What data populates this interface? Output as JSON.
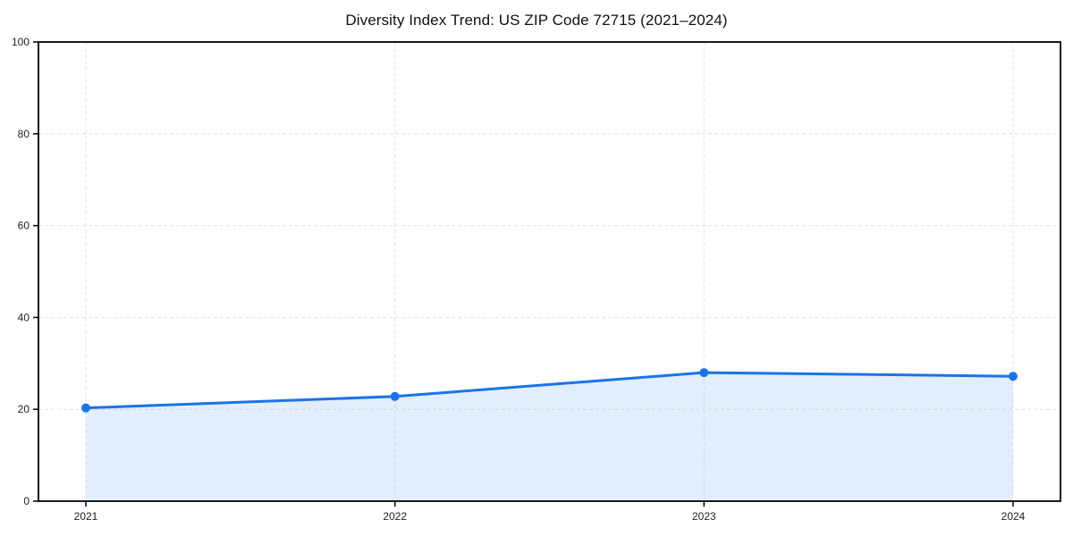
{
  "chart_data": {
    "type": "area",
    "title": "Diversity Index Trend: US ZIP Code 72715 (2021–2024)",
    "xlabel": "",
    "ylabel": "",
    "x": [
      "2021",
      "2022",
      "2023",
      "2024"
    ],
    "series": [
      {
        "name": "Diversity Index",
        "values": [
          20.3,
          22.8,
          28.0,
          27.2
        ]
      }
    ],
    "ylim": [
      0,
      100
    ],
    "yticks": [
      0,
      20,
      40,
      60,
      80,
      100
    ],
    "grid": true,
    "grid_style": "dashed",
    "legend": false,
    "colors": {
      "line": "#1a73e8",
      "marker": "#1a73e8",
      "fill": "rgba(26,115,232,0.12)",
      "grid": "#e4e4e4",
      "axis": "#000000",
      "tick_label": "#222222",
      "title": "#111111",
      "background": "#ffffff"
    }
  }
}
